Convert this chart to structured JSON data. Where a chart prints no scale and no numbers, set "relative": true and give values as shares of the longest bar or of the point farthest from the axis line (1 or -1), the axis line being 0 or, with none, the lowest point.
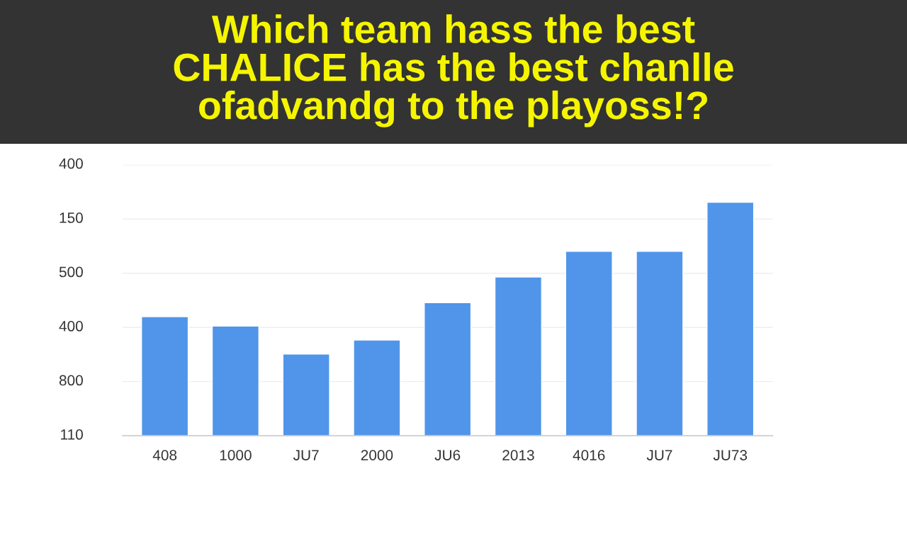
{
  "chart_data": {
    "type": "bar",
    "title": "Which team hass the best\nCHALICE has the best chanlle\nofadvandg to the playoss!?",
    "categories": [
      "408",
      "1000",
      "JU7",
      "2000",
      "JU6",
      "2013",
      "4016",
      "JU7",
      "JU73"
    ],
    "values": [
      0.51,
      0.47,
      0.35,
      0.41,
      0.57,
      0.68,
      0.79,
      0.79,
      1
    ],
    "color": "#5095ea",
    "relative": true,
    "annotations": [
      "110",
      "800",
      "400",
      "500",
      "150",
      "400"
    ],
    "grid": "y",
    "legend": false
  }
}
